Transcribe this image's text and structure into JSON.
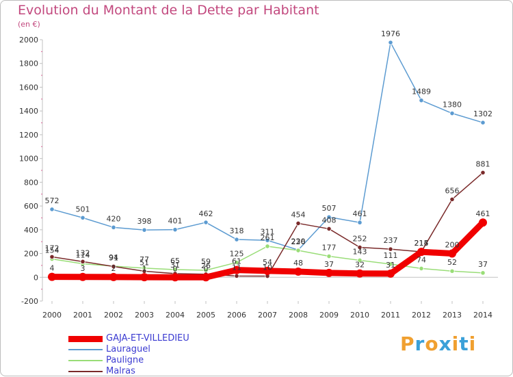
{
  "title": "Evolution du Montant de la Dette par Habitant",
  "subtitle": "(en €)",
  "logo": {
    "text": "Proxiti",
    "colors": [
      "#f0a030",
      "#3aa0d8",
      "#f0a030",
      "#3aa0d8",
      "#f0a030",
      "#3aa0d8",
      "#f0a030"
    ]
  },
  "chart_data": {
    "type": "line",
    "x": [
      "2000",
      "2001",
      "2002",
      "2003",
      "2004",
      "2005",
      "2006",
      "2007",
      "2008",
      "2009",
      "2010",
      "2011",
      "2012",
      "2013",
      "2014"
    ],
    "ylim": [
      -200,
      2000
    ],
    "yticks": [
      -200,
      0,
      200,
      400,
      600,
      800,
      1000,
      1200,
      1400,
      1600,
      1800,
      2000
    ],
    "grid": false,
    "legend_position": "bottom-left",
    "series": [
      {
        "name": "GAJA-ET-VILLEDIEU",
        "color": "#f00000",
        "width": 9,
        "values": [
          4,
          3,
          2,
          1,
          0,
          0,
          61,
          54,
          48,
          37,
          32,
          31,
          214,
          200,
          461
        ],
        "labels": [
          "4",
          "3",
          "2",
          "1",
          "0",
          "0",
          "61",
          "54",
          "48",
          "37",
          "32",
          "31",
          "214",
          "200",
          "461"
        ]
      },
      {
        "name": "Lauraguel",
        "color": "#5c9bd1",
        "width": 1.5,
        "values": [
          572,
          501,
          420,
          398,
          401,
          462,
          318,
          311,
          230,
          507,
          461,
          1976,
          1489,
          1380,
          1302
        ],
        "labels": [
          "572",
          "501",
          "420",
          "398",
          "401",
          "462",
          "318",
          "311",
          "230",
          "507",
          "461",
          "1976",
          "1489",
          "1380",
          "1302"
        ]
      },
      {
        "name": "Pauligne",
        "color": "#99dd77",
        "width": 1.5,
        "values": [
          154,
          114,
          94,
          77,
          65,
          59,
          125,
          261,
          226,
          177,
          143,
          111,
          74,
          52,
          37
        ],
        "labels": [
          "154",
          "114",
          "94",
          "77",
          "65",
          "59",
          "125",
          "261",
          "226",
          "177",
          "143",
          "111",
          "74",
          "52",
          "37"
        ]
      },
      {
        "name": "Malras",
        "color": "#7a2a2a",
        "width": 1.5,
        "values": [
          172,
          132,
          91,
          51,
          31,
          26,
          11,
          10,
          454,
          408,
          252,
          237,
          215,
          656,
          881
        ],
        "labels": [
          "172",
          "132",
          "91",
          "51",
          "31",
          "26",
          "11",
          "10",
          "454",
          "408",
          "252",
          "237",
          "215",
          "656",
          "881"
        ]
      }
    ]
  }
}
